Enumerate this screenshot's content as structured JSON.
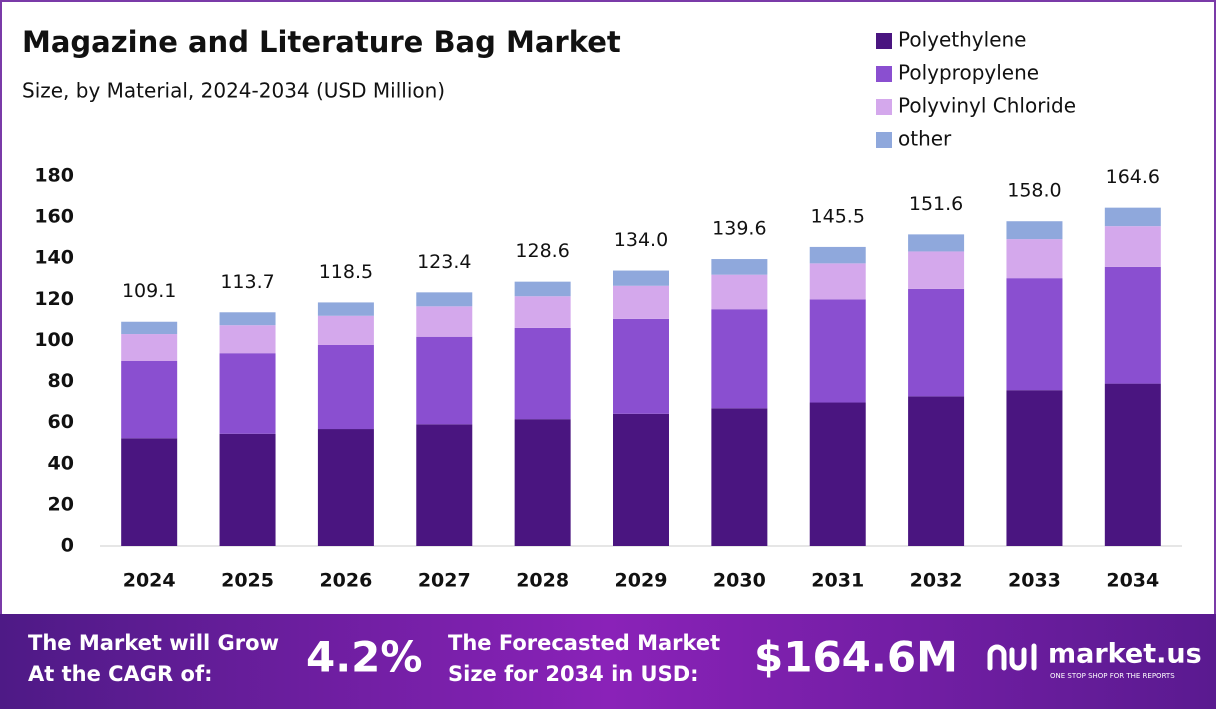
{
  "chart_data": {
    "type": "stacked_bar",
    "title": "Magazine and Literature Bag Market",
    "subtitle": "Size, by Material, 2024-2034 (USD Million)",
    "categories": [
      "2024",
      "2025",
      "2026",
      "2027",
      "2028",
      "2029",
      "2030",
      "2031",
      "2032",
      "2033",
      "2034"
    ],
    "series": [
      {
        "name": "Polyethylene",
        "color": "#4a1580",
        "values": [
          52.4,
          54.6,
          56.9,
          59.2,
          61.7,
          64.3,
          67.0,
          69.8,
          72.8,
          75.8,
          79.0
        ]
      },
      {
        "name": "Polypropylene",
        "color": "#8a4fd0",
        "values": [
          37.6,
          39.2,
          40.9,
          42.6,
          44.4,
          46.2,
          48.2,
          50.2,
          52.3,
          54.5,
          56.8
        ]
      },
      {
        "name": "Polyvinyl Chloride",
        "color": "#d4a8ec",
        "values": [
          13.1,
          13.6,
          14.2,
          14.8,
          15.4,
          16.1,
          16.8,
          17.5,
          18.2,
          19.0,
          19.8
        ]
      },
      {
        "name": "other",
        "color": "#8fa8dc",
        "values": [
          6.0,
          6.3,
          6.5,
          6.8,
          7.1,
          7.4,
          7.6,
          8.0,
          8.3,
          8.7,
          9.0
        ]
      }
    ],
    "totals": {
      "values": [
        109.1,
        113.7,
        118.5,
        123.4,
        128.6,
        134.0,
        139.6,
        145.5,
        151.6,
        158.0,
        164.6
      ],
      "value_labels": [
        "109.1",
        "113.7",
        "118.5",
        "123.4",
        "128.6",
        "134.0",
        "139.6",
        "145.5",
        "151.6",
        "158.0",
        "164.6"
      ]
    },
    "ylim": [
      0,
      180
    ],
    "yticks": [
      0,
      20,
      40,
      60,
      80,
      100,
      120,
      140,
      160,
      180
    ],
    "grid": false,
    "legend": "top-right"
  },
  "banner": {
    "cagr_text": [
      "The Market will Grow",
      "At the CAGR of:"
    ],
    "cagr": "4.2%",
    "forecast_text": [
      "The Forecasted Market",
      "Size for 2034 in USD:"
    ],
    "forecast": "$164.6M",
    "brand": "market.us",
    "tagline": "ONE STOP SHOP FOR THE REPORTS"
  }
}
